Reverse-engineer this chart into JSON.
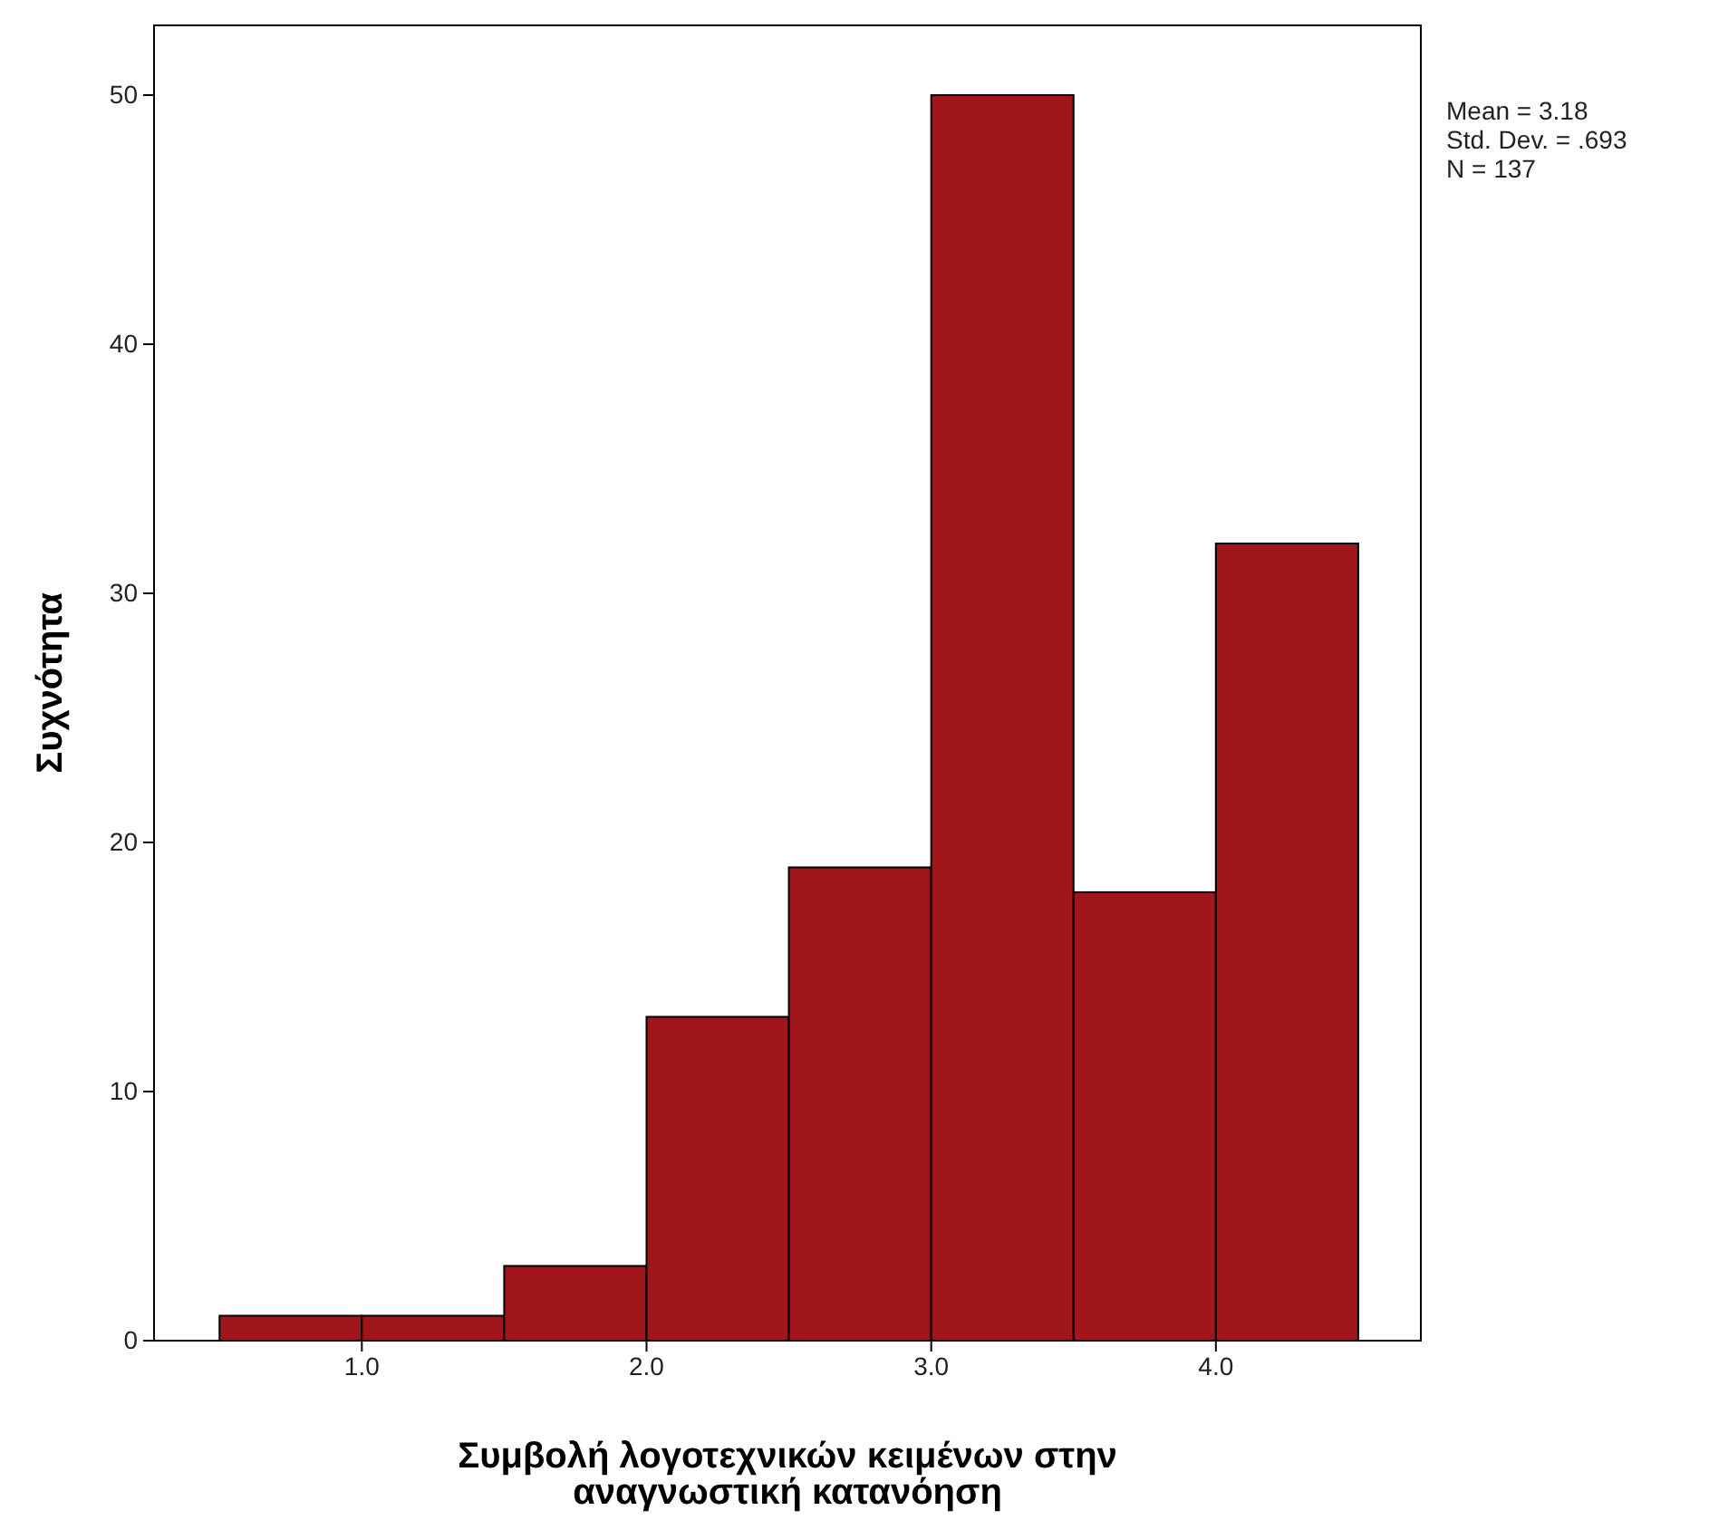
{
  "chart_data": {
    "type": "histogram",
    "xlabel": "Συμβολή λογοτεχνικών κειμένων στην αναγνωστική κατανόηση",
    "ylabel": "Συχνότητα",
    "bins": [
      0.5,
      1.0,
      1.5,
      2.0,
      2.5,
      3.0,
      3.5,
      4.0,
      4.5
    ],
    "values": [
      1,
      1,
      3,
      13,
      19,
      50,
      18,
      32
    ],
    "color": "#a0161b",
    "xlim": [
      0.27,
      4.72
    ],
    "ylim": [
      0,
      52.8
    ],
    "xticks": [
      {
        "value": 1,
        "label": "1.0"
      },
      {
        "value": 2,
        "label": "2.0"
      },
      {
        "value": 3,
        "label": "3.0"
      },
      {
        "value": 4,
        "label": "4.0"
      }
    ],
    "yticks": [
      0,
      10,
      20,
      30,
      40,
      50
    ],
    "grid": false,
    "annotations": [
      "Mean = 3.18",
      "Std. Dev. = .693",
      "N = 137"
    ]
  }
}
